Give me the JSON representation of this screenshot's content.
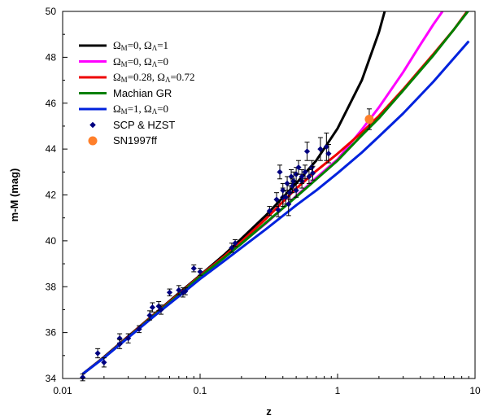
{
  "chart_data": {
    "type": "scatter",
    "title": "",
    "xlabel": "z",
    "ylabel": "m-M (mag)",
    "x_scale": "log",
    "xlim": [
      0.01,
      10
    ],
    "ylim": [
      34,
      50
    ],
    "x_ticks": [
      0.01,
      0.1,
      1,
      10
    ],
    "x_tick_labels": [
      "0.01",
      "0.1",
      "1",
      "10"
    ],
    "y_ticks": [
      34,
      36,
      38,
      40,
      42,
      44,
      46,
      48,
      50
    ],
    "y_tick_labels": [
      "34",
      "36",
      "38",
      "40",
      "42",
      "44",
      "46",
      "48",
      "50"
    ],
    "grid": false,
    "legend_position": "top-left",
    "legend": [
      {
        "label_html": "Ω<sub>M</sub>=0, Ω<sub>Λ</sub>=1",
        "style": "serif",
        "marker": "line",
        "color": "#000000"
      },
      {
        "label_html": "Ω<sub>M</sub>=0, Ω<sub>Λ</sub>=0",
        "style": "serif",
        "marker": "line",
        "color": "#ff00ff"
      },
      {
        "label_html": "Ω<sub>M</sub>=0.28, Ω<sub>Λ</sub>=0.72",
        "style": "serif",
        "marker": "line",
        "color": "#ee0000"
      },
      {
        "label_html": "Machian GR",
        "style": "sans",
        "marker": "line",
        "color": "#008000"
      },
      {
        "label_html": "Ω<sub>M</sub>=1, Ω<sub>Λ</sub>=0",
        "style": "serif",
        "marker": "line",
        "color": "#0022dd"
      },
      {
        "label_html": "SCP &amp; HZST",
        "style": "sans",
        "marker": "diamond",
        "color": "#000080"
      },
      {
        "label_html": "SN1997ff",
        "style": "sans",
        "marker": "circle",
        "color": "#ff7f2a"
      }
    ],
    "series": [
      {
        "name": "Ω_M=0, Ω_Λ=1",
        "kind": "line",
        "color": "#000000",
        "x": [
          0.014,
          0.02,
          0.03,
          0.05,
          0.07,
          0.1,
          0.15,
          0.2,
          0.3,
          0.5,
          0.7,
          1.0,
          1.5,
          2.0,
          2.2
        ],
        "y": [
          34.2,
          34.94,
          35.84,
          36.97,
          37.72,
          38.5,
          39.4,
          40.1,
          41.1,
          42.5,
          43.5,
          44.9,
          47.0,
          49.1,
          50.0
        ]
      },
      {
        "name": "Ω_M=0, Ω_Λ=0",
        "kind": "line",
        "color": "#ff00ff",
        "x": [
          0.014,
          0.02,
          0.03,
          0.05,
          0.07,
          0.1,
          0.15,
          0.2,
          0.3,
          0.5,
          0.7,
          1.0,
          1.5,
          2.0,
          3.0,
          4.0,
          5.0,
          5.8
        ],
        "y": [
          34.2,
          34.92,
          35.8,
          36.93,
          37.64,
          38.45,
          39.28,
          39.9,
          40.75,
          41.95,
          42.75,
          43.55,
          44.85,
          45.82,
          47.35,
          48.55,
          49.45,
          50.0
        ]
      },
      {
        "name": "Ω_M=0.28, Ω_Λ=0.72",
        "kind": "line",
        "color": "#ee0000",
        "x": [
          0.014,
          0.02,
          0.03,
          0.05,
          0.07,
          0.1,
          0.15,
          0.2,
          0.3,
          0.5,
          0.7,
          1.0,
          1.5,
          2.0,
          3.0,
          5.0,
          7.0,
          9.0
        ],
        "y": [
          34.2,
          34.92,
          35.82,
          36.95,
          37.68,
          38.48,
          39.33,
          39.97,
          40.95,
          42.28,
          43.05,
          43.8,
          44.72,
          45.45,
          46.6,
          48.15,
          49.2,
          50.1
        ]
      },
      {
        "name": "Machian GR",
        "kind": "line",
        "color": "#008000",
        "x": [
          0.014,
          0.02,
          0.03,
          0.05,
          0.07,
          0.1,
          0.15,
          0.2,
          0.3,
          0.5,
          0.7,
          1.0,
          1.5,
          2.0,
          3.0,
          5.0,
          7.0,
          9.0
        ],
        "y": [
          34.2,
          34.91,
          35.8,
          36.92,
          37.64,
          38.44,
          39.27,
          39.88,
          40.78,
          41.92,
          42.68,
          43.5,
          44.6,
          45.35,
          46.55,
          48.1,
          49.2,
          50.05
        ]
      },
      {
        "name": "Ω_M=1, Ω_Λ=0",
        "kind": "line",
        "color": "#0022dd",
        "x": [
          0.014,
          0.02,
          0.03,
          0.05,
          0.07,
          0.1,
          0.15,
          0.2,
          0.3,
          0.5,
          0.7,
          1.0,
          1.5,
          2.0,
          3.0,
          5.0,
          7.0,
          9.0
        ],
        "y": [
          34.2,
          34.9,
          35.78,
          36.88,
          37.58,
          38.34,
          39.13,
          39.7,
          40.5,
          41.55,
          42.2,
          42.95,
          43.85,
          44.55,
          45.55,
          46.95,
          47.95,
          48.7
        ]
      },
      {
        "name": "SCP & HZST",
        "kind": "scatter",
        "marker": "diamond",
        "color": "#000080",
        "points": [
          [
            0.014,
            34.05,
            0.15
          ],
          [
            0.018,
            35.1,
            0.2
          ],
          [
            0.02,
            34.7,
            0.2
          ],
          [
            0.026,
            35.75,
            0.2
          ],
          [
            0.026,
            35.5,
            0.2
          ],
          [
            0.03,
            35.75,
            0.2
          ],
          [
            0.036,
            36.15,
            0.15
          ],
          [
            0.043,
            36.75,
            0.2
          ],
          [
            0.045,
            37.1,
            0.2
          ],
          [
            0.05,
            37.15,
            0.2
          ],
          [
            0.052,
            37.0,
            0.2
          ],
          [
            0.06,
            37.75,
            0.15
          ],
          [
            0.07,
            37.85,
            0.2
          ],
          [
            0.075,
            37.75,
            0.2
          ],
          [
            0.078,
            37.8,
            0.15
          ],
          [
            0.09,
            38.8,
            0.15
          ],
          [
            0.1,
            38.65,
            0.15
          ],
          [
            0.17,
            39.7,
            0.2
          ],
          [
            0.18,
            39.9,
            0.15
          ],
          [
            0.32,
            41.3,
            0.2
          ],
          [
            0.36,
            41.8,
            0.3
          ],
          [
            0.37,
            41.35,
            0.3
          ],
          [
            0.38,
            43.0,
            0.3
          ],
          [
            0.4,
            41.9,
            0.4
          ],
          [
            0.4,
            42.2,
            0.3
          ],
          [
            0.42,
            41.9,
            0.3
          ],
          [
            0.43,
            42.5,
            0.3
          ],
          [
            0.44,
            41.6,
            0.5
          ],
          [
            0.45,
            42.1,
            0.3
          ],
          [
            0.46,
            42.8,
            0.3
          ],
          [
            0.47,
            42.4,
            0.3
          ],
          [
            0.48,
            42.6,
            0.4
          ],
          [
            0.5,
            42.2,
            0.3
          ],
          [
            0.5,
            42.9,
            0.3
          ],
          [
            0.52,
            43.2,
            0.3
          ],
          [
            0.55,
            42.6,
            0.3
          ],
          [
            0.55,
            42.8,
            0.3
          ],
          [
            0.58,
            43.0,
            0.3
          ],
          [
            0.6,
            43.9,
            0.4
          ],
          [
            0.62,
            42.8,
            0.3
          ],
          [
            0.65,
            43.2,
            0.3
          ],
          [
            0.66,
            42.95,
            0.3
          ],
          [
            0.75,
            44.0,
            0.5
          ],
          [
            0.83,
            44.1,
            0.6
          ],
          [
            0.86,
            43.8,
            0.4
          ]
        ]
      },
      {
        "name": "SN1997ff",
        "kind": "scatter",
        "marker": "circle",
        "color": "#ff7f2a",
        "points": [
          [
            1.7,
            45.3,
            0.45
          ]
        ]
      }
    ]
  }
}
